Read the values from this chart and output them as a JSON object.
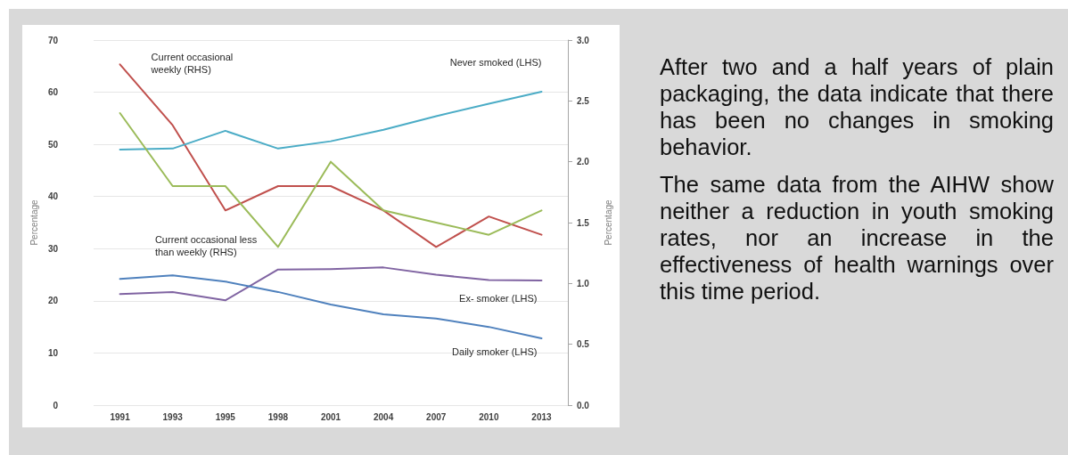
{
  "chart_data": {
    "type": "line",
    "categories": [
      "1991",
      "1993",
      "1995",
      "1998",
      "2001",
      "2004",
      "2007",
      "2010",
      "2013"
    ],
    "ylabel": "Percentage",
    "y2label": "Percentage",
    "ylim": [
      0,
      70
    ],
    "yticks": [
      0,
      10,
      20,
      30,
      40,
      50,
      60,
      70
    ],
    "y2lim": [
      0,
      3
    ],
    "y2ticks": [
      {
        "value": 0,
        "label": "0.0"
      },
      0.5,
      {
        "value": 1,
        "label": "1.0"
      },
      1.5,
      {
        "value": 2,
        "label": "2.0"
      },
      2.5,
      {
        "value": 3,
        "label": "3.0"
      }
    ],
    "grid": "y",
    "legend": false,
    "marker": "none",
    "line_style": "solid",
    "series": [
      {
        "name": "Current occasional weekly (RHS)",
        "color": "#c0504d",
        "axis": "y2",
        "values": [
          2.8,
          2.3,
          1.6,
          1.8,
          1.8,
          1.6,
          1.3,
          1.55,
          1.4
        ]
      },
      {
        "name": "Never smoked (LHS)",
        "color": "#4bacc6",
        "values": [
          49.0,
          49.2,
          52.6,
          49.2,
          50.6,
          52.8,
          55.4,
          57.8,
          60.1
        ]
      },
      {
        "name": "Current occasional less than weekly (RHS)",
        "color": "#9bbb59",
        "axis": "y2",
        "values": [
          2.4,
          1.8,
          1.8,
          1.3,
          2.0,
          1.6,
          1.5,
          1.4,
          1.6
        ]
      },
      {
        "name": "Ex- smoker (LHS)",
        "color": "#8064a2",
        "values": [
          21.3,
          21.7,
          20.1,
          26.0,
          26.1,
          26.4,
          25.0,
          24.0,
          23.9
        ]
      },
      {
        "name": "Daily smoker (LHS)",
        "color": "#4f81bd",
        "values": [
          24.2,
          24.9,
          23.7,
          21.7,
          19.3,
          17.4,
          16.6,
          15.0,
          12.8
        ]
      }
    ],
    "annotations": [
      "After two and a half years of plain packaging, the data indicate that there has been no changes in smoking behavior.",
      "The same data from the AIHW show neither a reduction in youth smoking rates, nor an increase in the effectiveness of health warnings over this time period."
    ]
  }
}
